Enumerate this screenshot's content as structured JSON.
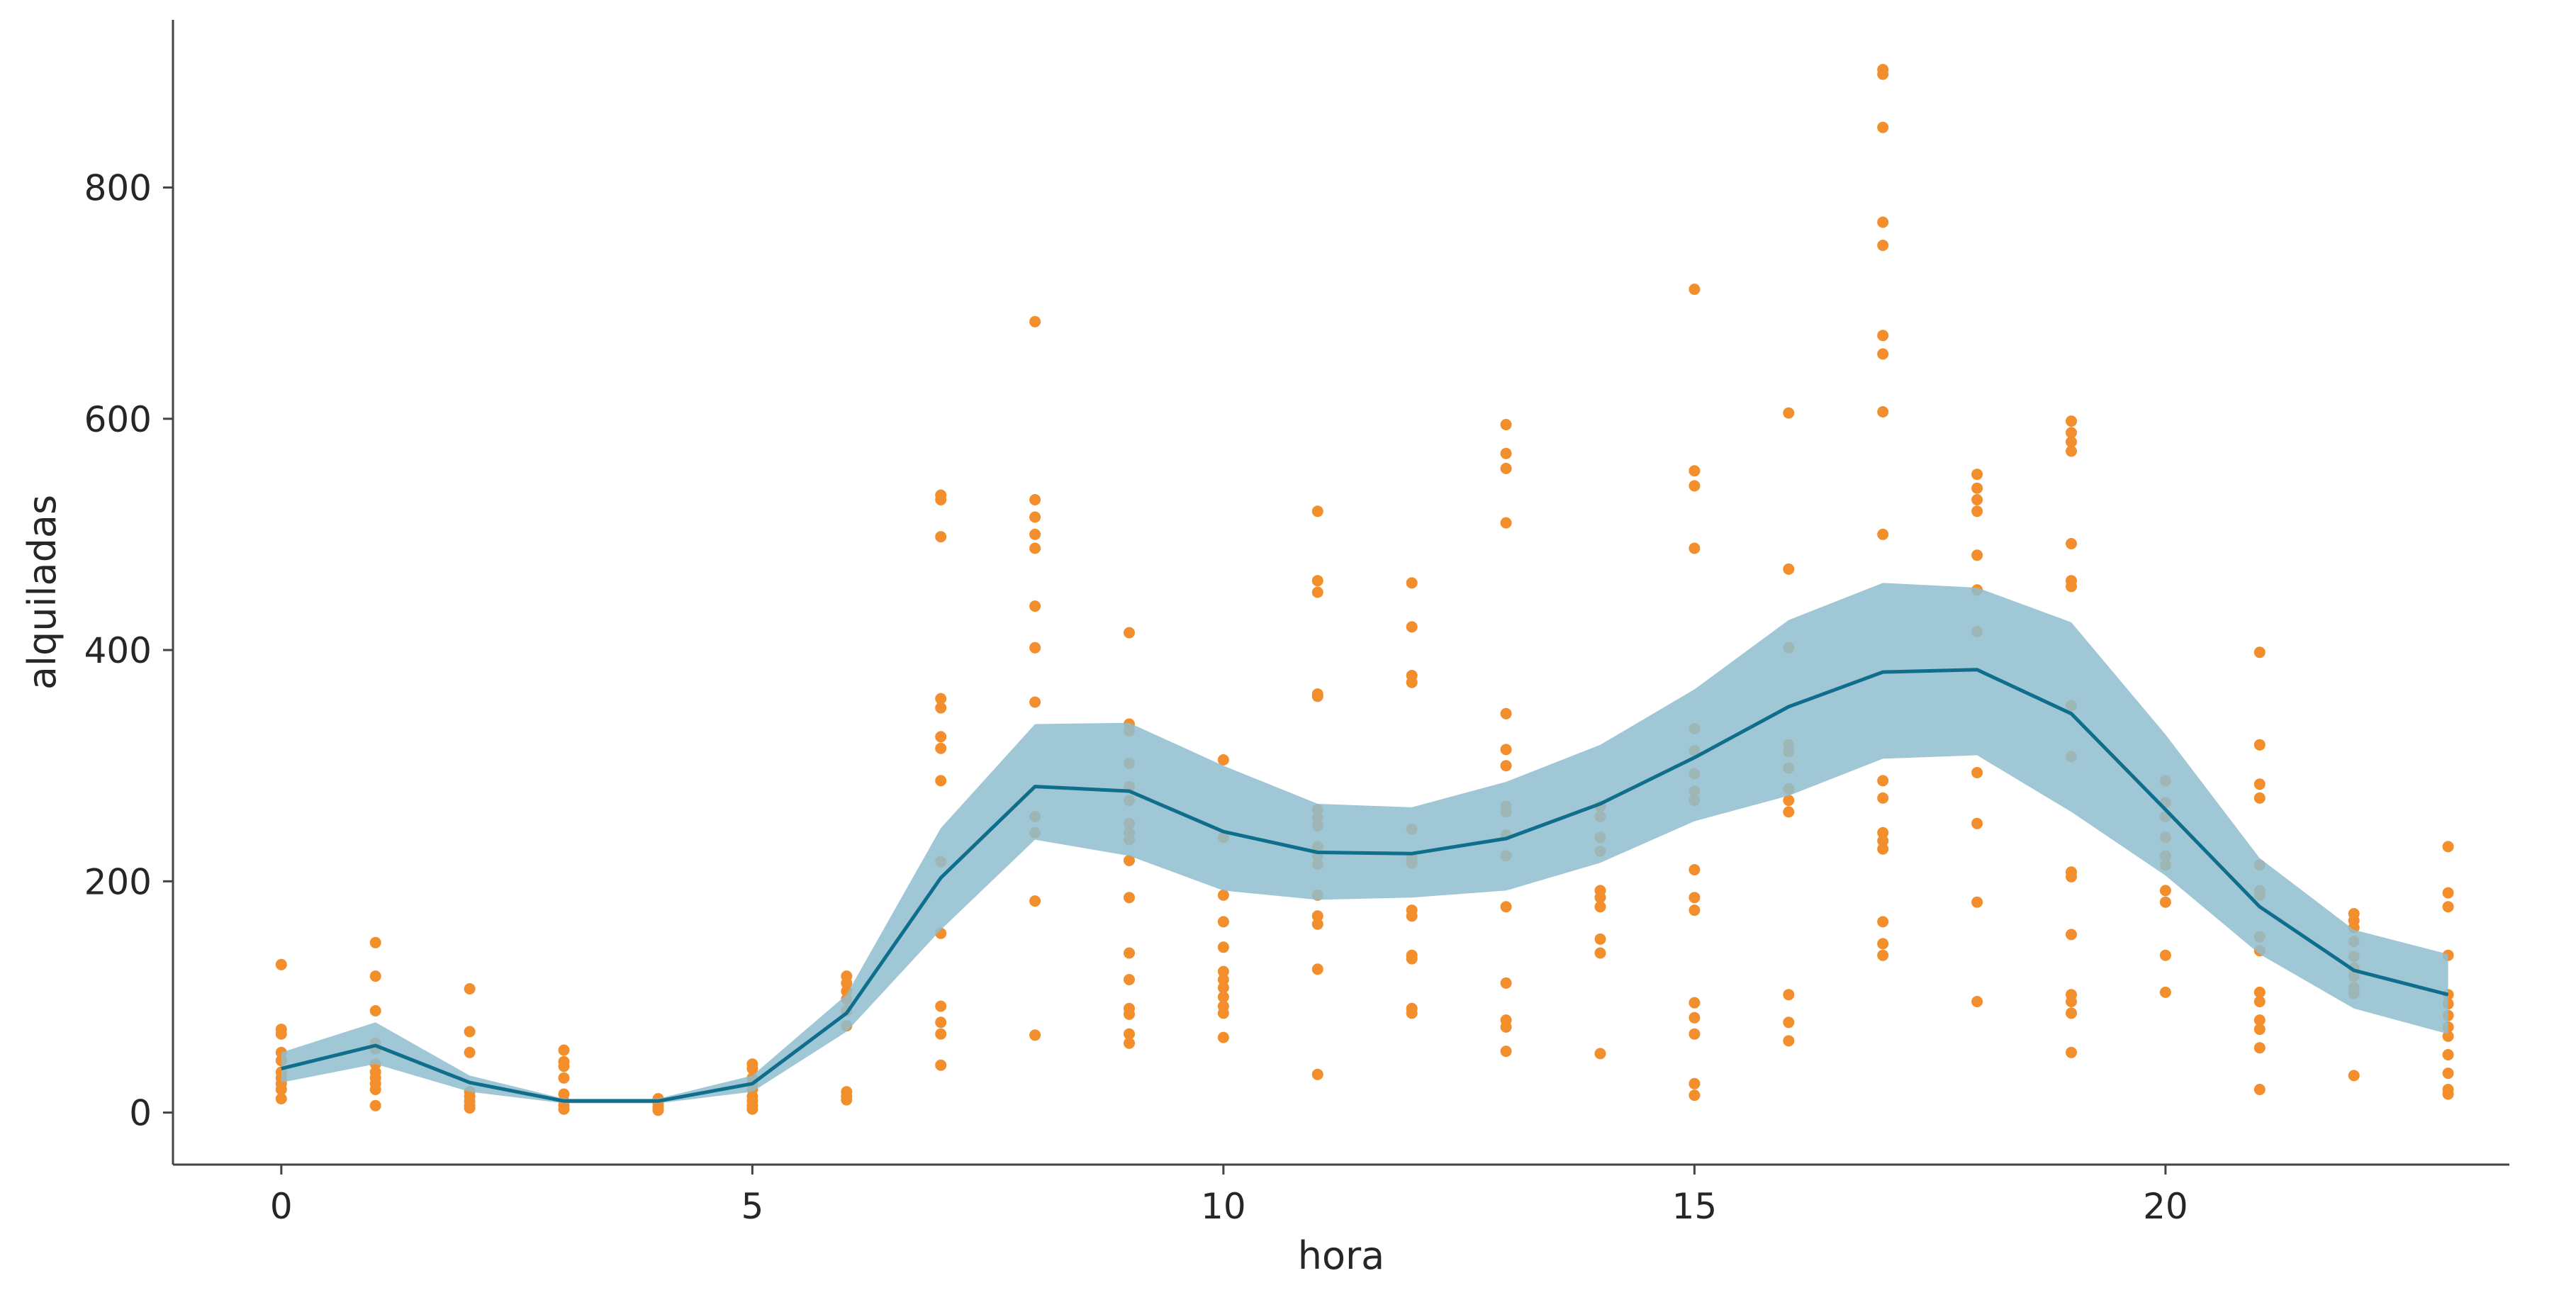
{
  "chart_data": {
    "type": "scatter",
    "title": "",
    "xlabel": "hora",
    "ylabel": "alquiladas",
    "xlim": [
      -1.15,
      23.65
    ],
    "ylim": [
      -45,
      945
    ],
    "x_ticks": [
      0,
      5,
      10,
      15,
      20
    ],
    "y_ticks": [
      0,
      200,
      400,
      600,
      800
    ],
    "grid": false,
    "legend": "none",
    "colors": {
      "points": "#f28e2b",
      "line": "#0f6e8c",
      "band": "#8fbdcf",
      "axis": "#444444",
      "text": "#262626"
    },
    "points": [
      [
        0,
        128
      ],
      [
        0,
        72
      ],
      [
        0,
        68
      ],
      [
        0,
        52
      ],
      [
        0,
        45
      ],
      [
        0,
        35
      ],
      [
        0,
        30
      ],
      [
        0,
        25
      ],
      [
        0,
        20
      ],
      [
        0,
        12
      ],
      [
        1,
        147
      ],
      [
        1,
        118
      ],
      [
        1,
        88
      ],
      [
        1,
        60
      ],
      [
        1,
        55
      ],
      [
        1,
        42
      ],
      [
        1,
        35
      ],
      [
        1,
        30
      ],
      [
        1,
        25
      ],
      [
        1,
        20
      ],
      [
        1,
        6
      ],
      [
        2,
        107
      ],
      [
        2,
        70
      ],
      [
        2,
        52
      ],
      [
        2,
        18
      ],
      [
        2,
        14
      ],
      [
        2,
        10
      ],
      [
        2,
        6
      ],
      [
        2,
        4
      ],
      [
        3,
        54
      ],
      [
        3,
        44
      ],
      [
        3,
        40
      ],
      [
        3,
        30
      ],
      [
        3,
        16
      ],
      [
        3,
        10
      ],
      [
        3,
        6
      ],
      [
        3,
        3
      ],
      [
        4,
        12
      ],
      [
        4,
        8
      ],
      [
        4,
        5
      ],
      [
        4,
        3
      ],
      [
        4,
        2
      ],
      [
        5,
        42
      ],
      [
        5,
        38
      ],
      [
        5,
        30
      ],
      [
        5,
        25
      ],
      [
        5,
        20
      ],
      [
        5,
        14
      ],
      [
        5,
        10
      ],
      [
        5,
        6
      ],
      [
        5,
        3
      ],
      [
        6,
        118
      ],
      [
        6,
        112
      ],
      [
        6,
        105
      ],
      [
        6,
        98
      ],
      [
        6,
        88
      ],
      [
        6,
        75
      ],
      [
        6,
        18
      ],
      [
        6,
        14
      ],
      [
        6,
        11
      ],
      [
        7,
        534
      ],
      [
        7,
        530
      ],
      [
        7,
        498
      ],
      [
        7,
        358
      ],
      [
        7,
        350
      ],
      [
        7,
        325
      ],
      [
        7,
        315
      ],
      [
        7,
        287
      ],
      [
        7,
        217
      ],
      [
        7,
        155
      ],
      [
        7,
        92
      ],
      [
        7,
        78
      ],
      [
        7,
        68
      ],
      [
        7,
        41
      ],
      [
        8,
        684
      ],
      [
        8,
        530
      ],
      [
        8,
        515
      ],
      [
        8,
        500
      ],
      [
        8,
        488
      ],
      [
        8,
        438
      ],
      [
        8,
        402
      ],
      [
        8,
        355
      ],
      [
        8,
        256
      ],
      [
        8,
        242
      ],
      [
        8,
        183
      ],
      [
        8,
        67
      ],
      [
        9,
        415
      ],
      [
        9,
        336
      ],
      [
        9,
        330
      ],
      [
        9,
        302
      ],
      [
        9,
        282
      ],
      [
        9,
        270
      ],
      [
        9,
        250
      ],
      [
        9,
        242
      ],
      [
        9,
        236
      ],
      [
        9,
        218
      ],
      [
        9,
        186
      ],
      [
        9,
        138
      ],
      [
        9,
        115
      ],
      [
        9,
        90
      ],
      [
        9,
        85
      ],
      [
        9,
        68
      ],
      [
        9,
        60
      ],
      [
        10,
        305
      ],
      [
        10,
        238
      ],
      [
        10,
        188
      ],
      [
        10,
        165
      ],
      [
        10,
        143
      ],
      [
        10,
        122
      ],
      [
        10,
        115
      ],
      [
        10,
        108
      ],
      [
        10,
        100
      ],
      [
        10,
        92
      ],
      [
        10,
        86
      ],
      [
        10,
        65
      ],
      [
        11,
        520
      ],
      [
        11,
        460
      ],
      [
        11,
        450
      ],
      [
        11,
        362
      ],
      [
        11,
        360
      ],
      [
        11,
        262
      ],
      [
        11,
        255
      ],
      [
        11,
        248
      ],
      [
        11,
        230
      ],
      [
        11,
        222
      ],
      [
        11,
        215
      ],
      [
        11,
        188
      ],
      [
        11,
        170
      ],
      [
        11,
        163
      ],
      [
        11,
        124
      ],
      [
        11,
        33
      ],
      [
        12,
        458
      ],
      [
        12,
        420
      ],
      [
        12,
        378
      ],
      [
        12,
        372
      ],
      [
        12,
        245
      ],
      [
        12,
        220
      ],
      [
        12,
        216
      ],
      [
        12,
        175
      ],
      [
        12,
        170
      ],
      [
        12,
        136
      ],
      [
        12,
        133
      ],
      [
        12,
        90
      ],
      [
        12,
        86
      ],
      [
        13,
        595
      ],
      [
        13,
        570
      ],
      [
        13,
        557
      ],
      [
        13,
        510
      ],
      [
        13,
        345
      ],
      [
        13,
        314
      ],
      [
        13,
        300
      ],
      [
        13,
        265
      ],
      [
        13,
        260
      ],
      [
        13,
        240
      ],
      [
        13,
        222
      ],
      [
        13,
        178
      ],
      [
        13,
        112
      ],
      [
        13,
        80
      ],
      [
        13,
        74
      ],
      [
        13,
        53
      ],
      [
        14,
        265
      ],
      [
        14,
        256
      ],
      [
        14,
        238
      ],
      [
        14,
        226
      ],
      [
        14,
        192
      ],
      [
        14,
        186
      ],
      [
        14,
        178
      ],
      [
        14,
        150
      ],
      [
        14,
        138
      ],
      [
        14,
        51
      ],
      [
        15,
        712
      ],
      [
        15,
        555
      ],
      [
        15,
        542
      ],
      [
        15,
        488
      ],
      [
        15,
        332
      ],
      [
        15,
        313
      ],
      [
        15,
        293
      ],
      [
        15,
        278
      ],
      [
        15,
        270
      ],
      [
        15,
        210
      ],
      [
        15,
        186
      ],
      [
        15,
        175
      ],
      [
        15,
        95
      ],
      [
        15,
        82
      ],
      [
        15,
        68
      ],
      [
        15,
        25
      ],
      [
        15,
        15
      ],
      [
        16,
        605
      ],
      [
        16,
        470
      ],
      [
        16,
        402
      ],
      [
        16,
        318
      ],
      [
        16,
        312
      ],
      [
        16,
        298
      ],
      [
        16,
        280
      ],
      [
        16,
        270
      ],
      [
        16,
        260
      ],
      [
        16,
        102
      ],
      [
        16,
        78
      ],
      [
        16,
        62
      ],
      [
        17,
        902
      ],
      [
        17,
        898
      ],
      [
        17,
        852
      ],
      [
        17,
        770
      ],
      [
        17,
        750
      ],
      [
        17,
        672
      ],
      [
        17,
        656
      ],
      [
        17,
        606
      ],
      [
        17,
        500
      ],
      [
        17,
        287
      ],
      [
        17,
        272
      ],
      [
        17,
        242
      ],
      [
        17,
        235
      ],
      [
        17,
        228
      ],
      [
        17,
        165
      ],
      [
        17,
        146
      ],
      [
        17,
        136
      ],
      [
        18,
        552
      ],
      [
        18,
        540
      ],
      [
        18,
        530
      ],
      [
        18,
        520
      ],
      [
        18,
        482
      ],
      [
        18,
        452
      ],
      [
        18,
        416
      ],
      [
        18,
        294
      ],
      [
        18,
        250
      ],
      [
        18,
        182
      ],
      [
        18,
        96
      ],
      [
        19,
        598
      ],
      [
        19,
        588
      ],
      [
        19,
        580
      ],
      [
        19,
        572
      ],
      [
        19,
        492
      ],
      [
        19,
        460
      ],
      [
        19,
        455
      ],
      [
        19,
        352
      ],
      [
        19,
        308
      ],
      [
        19,
        208
      ],
      [
        19,
        204
      ],
      [
        19,
        154
      ],
      [
        19,
        102
      ],
      [
        19,
        96
      ],
      [
        19,
        86
      ],
      [
        19,
        52
      ],
      [
        20,
        287
      ],
      [
        20,
        268
      ],
      [
        20,
        256
      ],
      [
        20,
        238
      ],
      [
        20,
        222
      ],
      [
        20,
        214
      ],
      [
        20,
        192
      ],
      [
        20,
        182
      ],
      [
        20,
        136
      ],
      [
        20,
        104
      ],
      [
        21,
        398
      ],
      [
        21,
        318
      ],
      [
        21,
        284
      ],
      [
        21,
        272
      ],
      [
        21,
        214
      ],
      [
        21,
        192
      ],
      [
        21,
        188
      ],
      [
        21,
        152
      ],
      [
        21,
        140
      ],
      [
        21,
        104
      ],
      [
        21,
        96
      ],
      [
        21,
        80
      ],
      [
        21,
        72
      ],
      [
        21,
        56
      ],
      [
        21,
        20
      ],
      [
        22,
        172
      ],
      [
        22,
        166
      ],
      [
        22,
        160
      ],
      [
        22,
        148
      ],
      [
        22,
        135
      ],
      [
        22,
        125
      ],
      [
        22,
        118
      ],
      [
        22,
        108
      ],
      [
        22,
        103
      ],
      [
        22,
        32
      ],
      [
        23,
        230
      ],
      [
        23,
        190
      ],
      [
        23,
        178
      ],
      [
        23,
        136
      ],
      [
        23,
        102
      ],
      [
        23,
        94
      ],
      [
        23,
        84
      ],
      [
        23,
        74
      ],
      [
        23,
        66
      ],
      [
        23,
        50
      ],
      [
        23,
        34
      ],
      [
        23,
        20
      ],
      [
        23,
        16
      ]
    ],
    "series": [
      {
        "x": [
          0,
          1,
          2,
          3,
          4,
          5,
          6,
          7,
          8,
          9,
          10,
          11,
          12,
          13,
          14,
          15,
          16,
          17,
          18,
          19,
          20,
          21,
          22,
          23
        ],
        "mean": [
          38,
          58,
          26,
          10,
          10,
          25,
          86,
          203,
          282,
          278,
          243,
          225,
          224,
          237,
          267,
          307,
          351,
          381,
          383,
          345,
          262,
          178,
          123,
          102
        ],
        "lower": [
          26,
          42,
          18,
          8,
          8,
          18,
          70,
          158,
          236,
          222,
          192,
          184,
          186,
          192,
          216,
          252,
          274,
          306,
          309,
          260,
          205,
          137,
          90,
          68
        ],
        "upper": [
          52,
          78,
          32,
          12,
          12,
          32,
          102,
          246,
          336,
          337,
          300,
          267,
          264,
          286,
          318,
          366,
          426,
          458,
          454,
          424,
          327,
          220,
          158,
          137
        ]
      }
    ]
  }
}
